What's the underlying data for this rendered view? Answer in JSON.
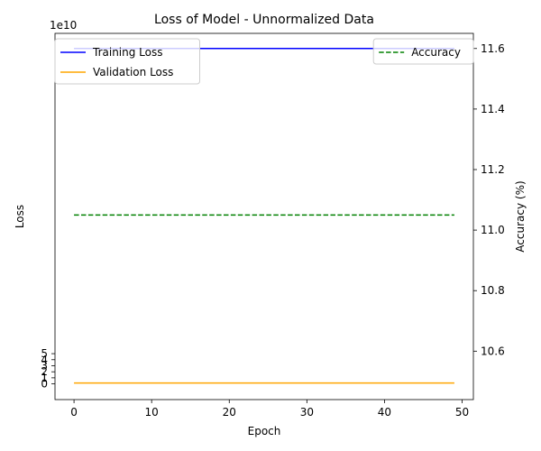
{
  "chart_data": {
    "type": "line",
    "title": "Loss of Model - Unnormalized Data",
    "xlabel": "Epoch",
    "ylabel_left": "Loss",
    "ylabel_right": "Accuracy (%)",
    "left_axis_offset_text": "1e10",
    "left_axis_multiplier": 10000000000,
    "x_range": [
      -2.45,
      51.45
    ],
    "y_left_range": [
      -2.6,
      58.0
    ],
    "y_right_range": [
      10.44,
      11.65
    ],
    "x_ticks": [
      0,
      10,
      20,
      30,
      40,
      50
    ],
    "y_left_ticks": [
      0,
      1,
      2,
      3,
      4,
      5
    ],
    "y_right_ticks": [
      10.6,
      10.8,
      11.0,
      11.2,
      11.4,
      11.6
    ],
    "y_right_tick_labels": [
      "10.6",
      "10.8",
      "11.0",
      "11.2",
      "11.4",
      "11.6"
    ],
    "x": [
      0,
      49
    ],
    "series": [
      {
        "name": "Training Loss",
        "axis": "left",
        "values": [
          55.5,
          55.5
        ],
        "color": "#0000ff",
        "dash": "solid"
      },
      {
        "name": "Validation Loss",
        "axis": "left",
        "values": [
          0.15,
          0.15
        ],
        "color": "#ffa500",
        "dash": "solid"
      },
      {
        "name": "Accuracy",
        "axis": "right",
        "values": [
          11.05,
          11.05
        ],
        "color": "#008000",
        "dash": "dashed"
      }
    ],
    "legends": [
      {
        "placement": "upper-left",
        "entries": [
          "Training Loss",
          "Validation Loss"
        ]
      },
      {
        "placement": "upper-right",
        "entries": [
          "Accuracy"
        ]
      }
    ],
    "grid": false
  }
}
